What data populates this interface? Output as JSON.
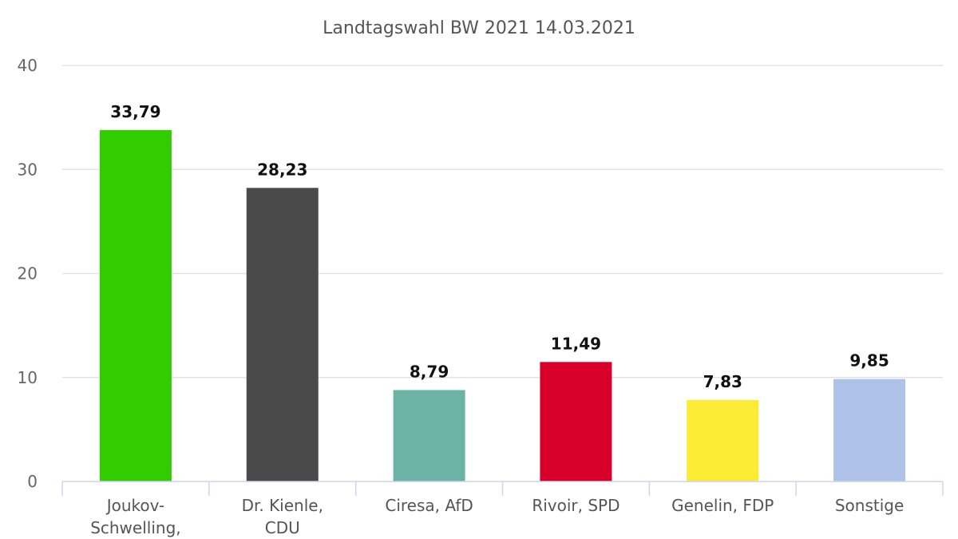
{
  "chart_data": {
    "type": "bar",
    "title": "Landtagswahl BW 2021 14.03.2021",
    "xlabel": "",
    "ylabel": "",
    "ylim": [
      0,
      40
    ],
    "yticks": [
      "0",
      "10",
      "20",
      "30",
      "40"
    ],
    "grid": true,
    "categories": [
      [
        "Joukov-",
        "Schwelling,"
      ],
      [
        "Dr. Kienle,",
        "CDU"
      ],
      [
        "Ciresa, AfD"
      ],
      [
        "Rivoir, SPD"
      ],
      [
        "Genelin, FDP"
      ],
      [
        "Sonstige"
      ]
    ],
    "values": [
      33.79,
      28.23,
      8.79,
      11.49,
      7.83,
      9.85
    ],
    "value_labels": [
      "33,79",
      "28,23",
      "8,79",
      "11,49",
      "7,83",
      "9,85"
    ],
    "colors": [
      "#33cc00",
      "#4a4a4a",
      "#6cb3a5",
      "#d6002a",
      "#fbeb34",
      "#adc2e6"
    ]
  }
}
